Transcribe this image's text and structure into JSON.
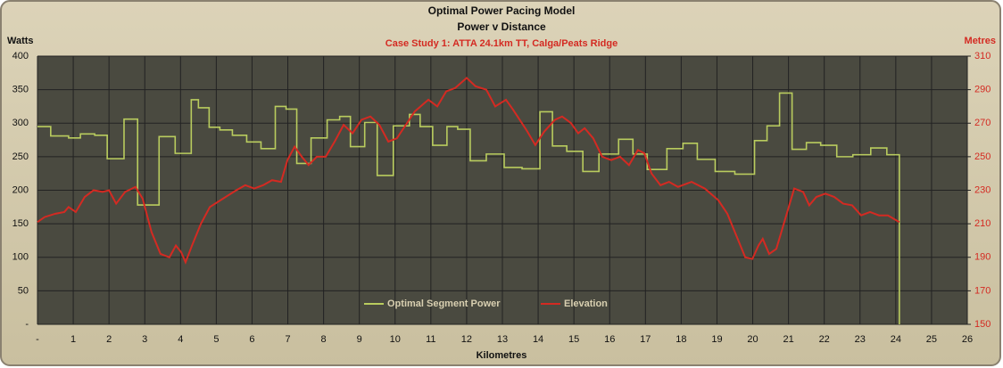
{
  "chart_data": {
    "type": "line",
    "title": "Optimal Power Pacing Model",
    "subtitle": "Power v Distance",
    "annotation": "Case Study 1: ATTA 24.1km TT, Calga/Peats Ridge",
    "x_label": "Kilometres",
    "y_label": "Watts",
    "y2_label": "Metres",
    "xlim": [
      0,
      26
    ],
    "xticks": [
      {
        "value": 0,
        "label": "-"
      },
      1,
      2,
      3,
      4,
      5,
      6,
      7,
      8,
      9,
      10,
      11,
      12,
      13,
      14,
      15,
      16,
      17,
      18,
      19,
      20,
      21,
      22,
      23,
      24,
      25,
      26
    ],
    "ylim": [
      0,
      400
    ],
    "yticks": [
      {
        "value": 0,
        "label": "-"
      },
      50,
      100,
      150,
      200,
      250,
      300,
      350,
      400
    ],
    "y2lim": [
      150,
      310
    ],
    "y2ticks": [
      150,
      170,
      190,
      210,
      230,
      250,
      270,
      290,
      310
    ],
    "grid": true,
    "legend": "bottom",
    "series": [
      {
        "name": "Optimal Segment Power",
        "color": "#b9cc5e",
        "step": "post",
        "x": [
          0,
          0.37,
          0.87,
          1.2,
          1.6,
          1.95,
          2.42,
          2.8,
          3.4,
          3.85,
          4.3,
          4.5,
          4.8,
          5.1,
          5.45,
          5.85,
          6.25,
          6.65,
          6.95,
          7.25,
          7.65,
          8.1,
          8.45,
          8.75,
          9.15,
          9.5,
          9.95,
          10.4,
          10.7,
          11.05,
          11.45,
          11.75,
          12.1,
          12.55,
          13.05,
          13.55,
          14.05,
          14.4,
          14.8,
          15.25,
          15.7,
          16.25,
          16.65,
          17.05,
          17.6,
          18.05,
          18.45,
          18.95,
          19.5,
          20.05,
          20.4,
          20.75,
          21.1,
          21.5,
          21.9,
          22.35,
          22.8,
          23.3,
          23.75,
          24.1
        ],
        "values": [
          295,
          281,
          278,
          284,
          282,
          247,
          306,
          178,
          280,
          255,
          335,
          323,
          294,
          290,
          282,
          272,
          262,
          325,
          321,
          240,
          278,
          305,
          310,
          265,
          301,
          222,
          296,
          313,
          295,
          267,
          295,
          291,
          244,
          254,
          234,
          232,
          317,
          266,
          258,
          228,
          254,
          276,
          254,
          231,
          262,
          270,
          246,
          228,
          224,
          274,
          296,
          345,
          261,
          271,
          267,
          250,
          253,
          263,
          253,
          0
        ]
      },
      {
        "name": "Elevation",
        "color": "#d42a22",
        "axis": "y2",
        "x": [
          0,
          0.2,
          0.5,
          0.75,
          0.87,
          1.07,
          1.32,
          1.57,
          1.82,
          2.0,
          2.2,
          2.45,
          2.74,
          2.94,
          3.19,
          3.44,
          3.69,
          3.87,
          4.02,
          4.14,
          4.32,
          4.57,
          4.82,
          5.19,
          5.56,
          5.81,
          6.06,
          6.31,
          6.56,
          6.81,
          6.99,
          7.19,
          7.39,
          7.58,
          7.81,
          8.06,
          8.31,
          8.56,
          8.81,
          9.06,
          9.31,
          9.56,
          9.81,
          10.05,
          10.3,
          10.55,
          10.93,
          11.18,
          11.43,
          11.68,
          12.0,
          12.25,
          12.55,
          12.8,
          13.1,
          13.3,
          13.67,
          13.92,
          14.17,
          14.47,
          14.67,
          14.92,
          15.12,
          15.3,
          15.54,
          15.79,
          16.04,
          16.29,
          16.54,
          16.79,
          16.97,
          17.17,
          17.42,
          17.66,
          17.91,
          18.29,
          18.66,
          19.04,
          19.29,
          19.54,
          19.79,
          19.99,
          20.16,
          20.28,
          20.46,
          20.66,
          20.91,
          21.16,
          21.41,
          21.58,
          21.78,
          22.03,
          22.28,
          22.53,
          22.78,
          23.03,
          23.28,
          23.53,
          23.78,
          24.1
        ],
        "values": [
          211,
          214,
          216,
          217,
          220,
          217,
          226,
          230,
          229,
          230,
          222,
          229,
          232,
          225,
          205,
          192,
          190,
          197,
          193,
          187,
          197,
          210,
          220,
          225,
          230,
          233,
          231,
          233,
          236,
          235,
          248,
          256,
          250,
          245,
          250,
          250,
          259,
          269,
          264,
          272,
          274,
          269,
          259,
          261,
          269,
          277,
          284,
          280,
          289,
          291,
          297,
          292,
          290,
          280,
          284,
          278,
          266,
          257,
          265,
          272,
          274,
          270,
          264,
          267,
          261,
          250,
          248,
          250,
          245,
          254,
          252,
          240,
          233,
          235,
          232,
          235,
          231,
          224,
          216,
          203,
          190,
          189,
          197,
          201,
          192,
          195,
          213,
          231,
          229,
          221,
          226,
          228,
          226,
          222,
          221,
          215,
          217,
          215,
          215,
          211
        ]
      }
    ]
  }
}
